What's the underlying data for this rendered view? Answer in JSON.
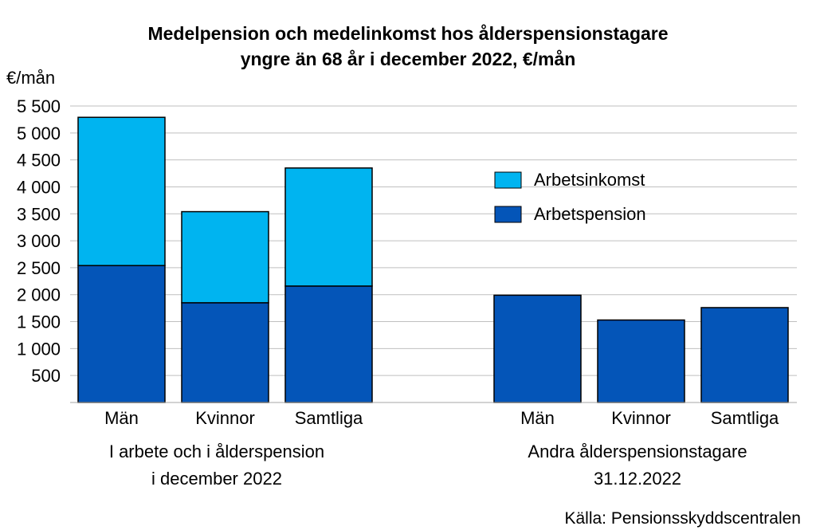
{
  "chart_data": {
    "type": "bar",
    "stacked": true,
    "title_line1": "Medelpension och medelinkomst hos ålderspensionstagare",
    "title_line2": "yngre än 68 år i december 2022, €/mån",
    "ylabel": "€/mån",
    "ylim": [
      0,
      5500
    ],
    "yticks": [
      500,
      1000,
      1500,
      2000,
      2500,
      3000,
      3500,
      4000,
      4500,
      5000,
      5500
    ],
    "ytick_labels": [
      "500",
      "1 000",
      "1 500",
      "2 000",
      "2 500",
      "3 000",
      "3 500",
      "4 000",
      "4 500",
      "5 000",
      "5 500"
    ],
    "grid": true,
    "legend_position": "top-right",
    "groups": [
      {
        "label_line1": "I arbete och i ålderspension",
        "label_line2": "i december 2022"
      },
      {
        "label_line1": "Andra ålderspensionstagare",
        "label_line2": "31.12.2022"
      }
    ],
    "categories": [
      "Män",
      "Kvinnor",
      "Samtliga",
      "Män",
      "Kvinnor",
      "Samtliga"
    ],
    "series": [
      {
        "name": "Arbetspension",
        "color": "#0455b8",
        "values": [
          2540,
          1850,
          2160,
          1990,
          1530,
          1760
        ]
      },
      {
        "name": "Arbetsinkomst",
        "color": "#00b4f0",
        "values": [
          2750,
          1690,
          2190,
          0,
          0,
          0
        ]
      }
    ],
    "legend_order": [
      "Arbetsinkomst",
      "Arbetspension"
    ],
    "source": "Källa: Pensionsskyddscentralen"
  }
}
